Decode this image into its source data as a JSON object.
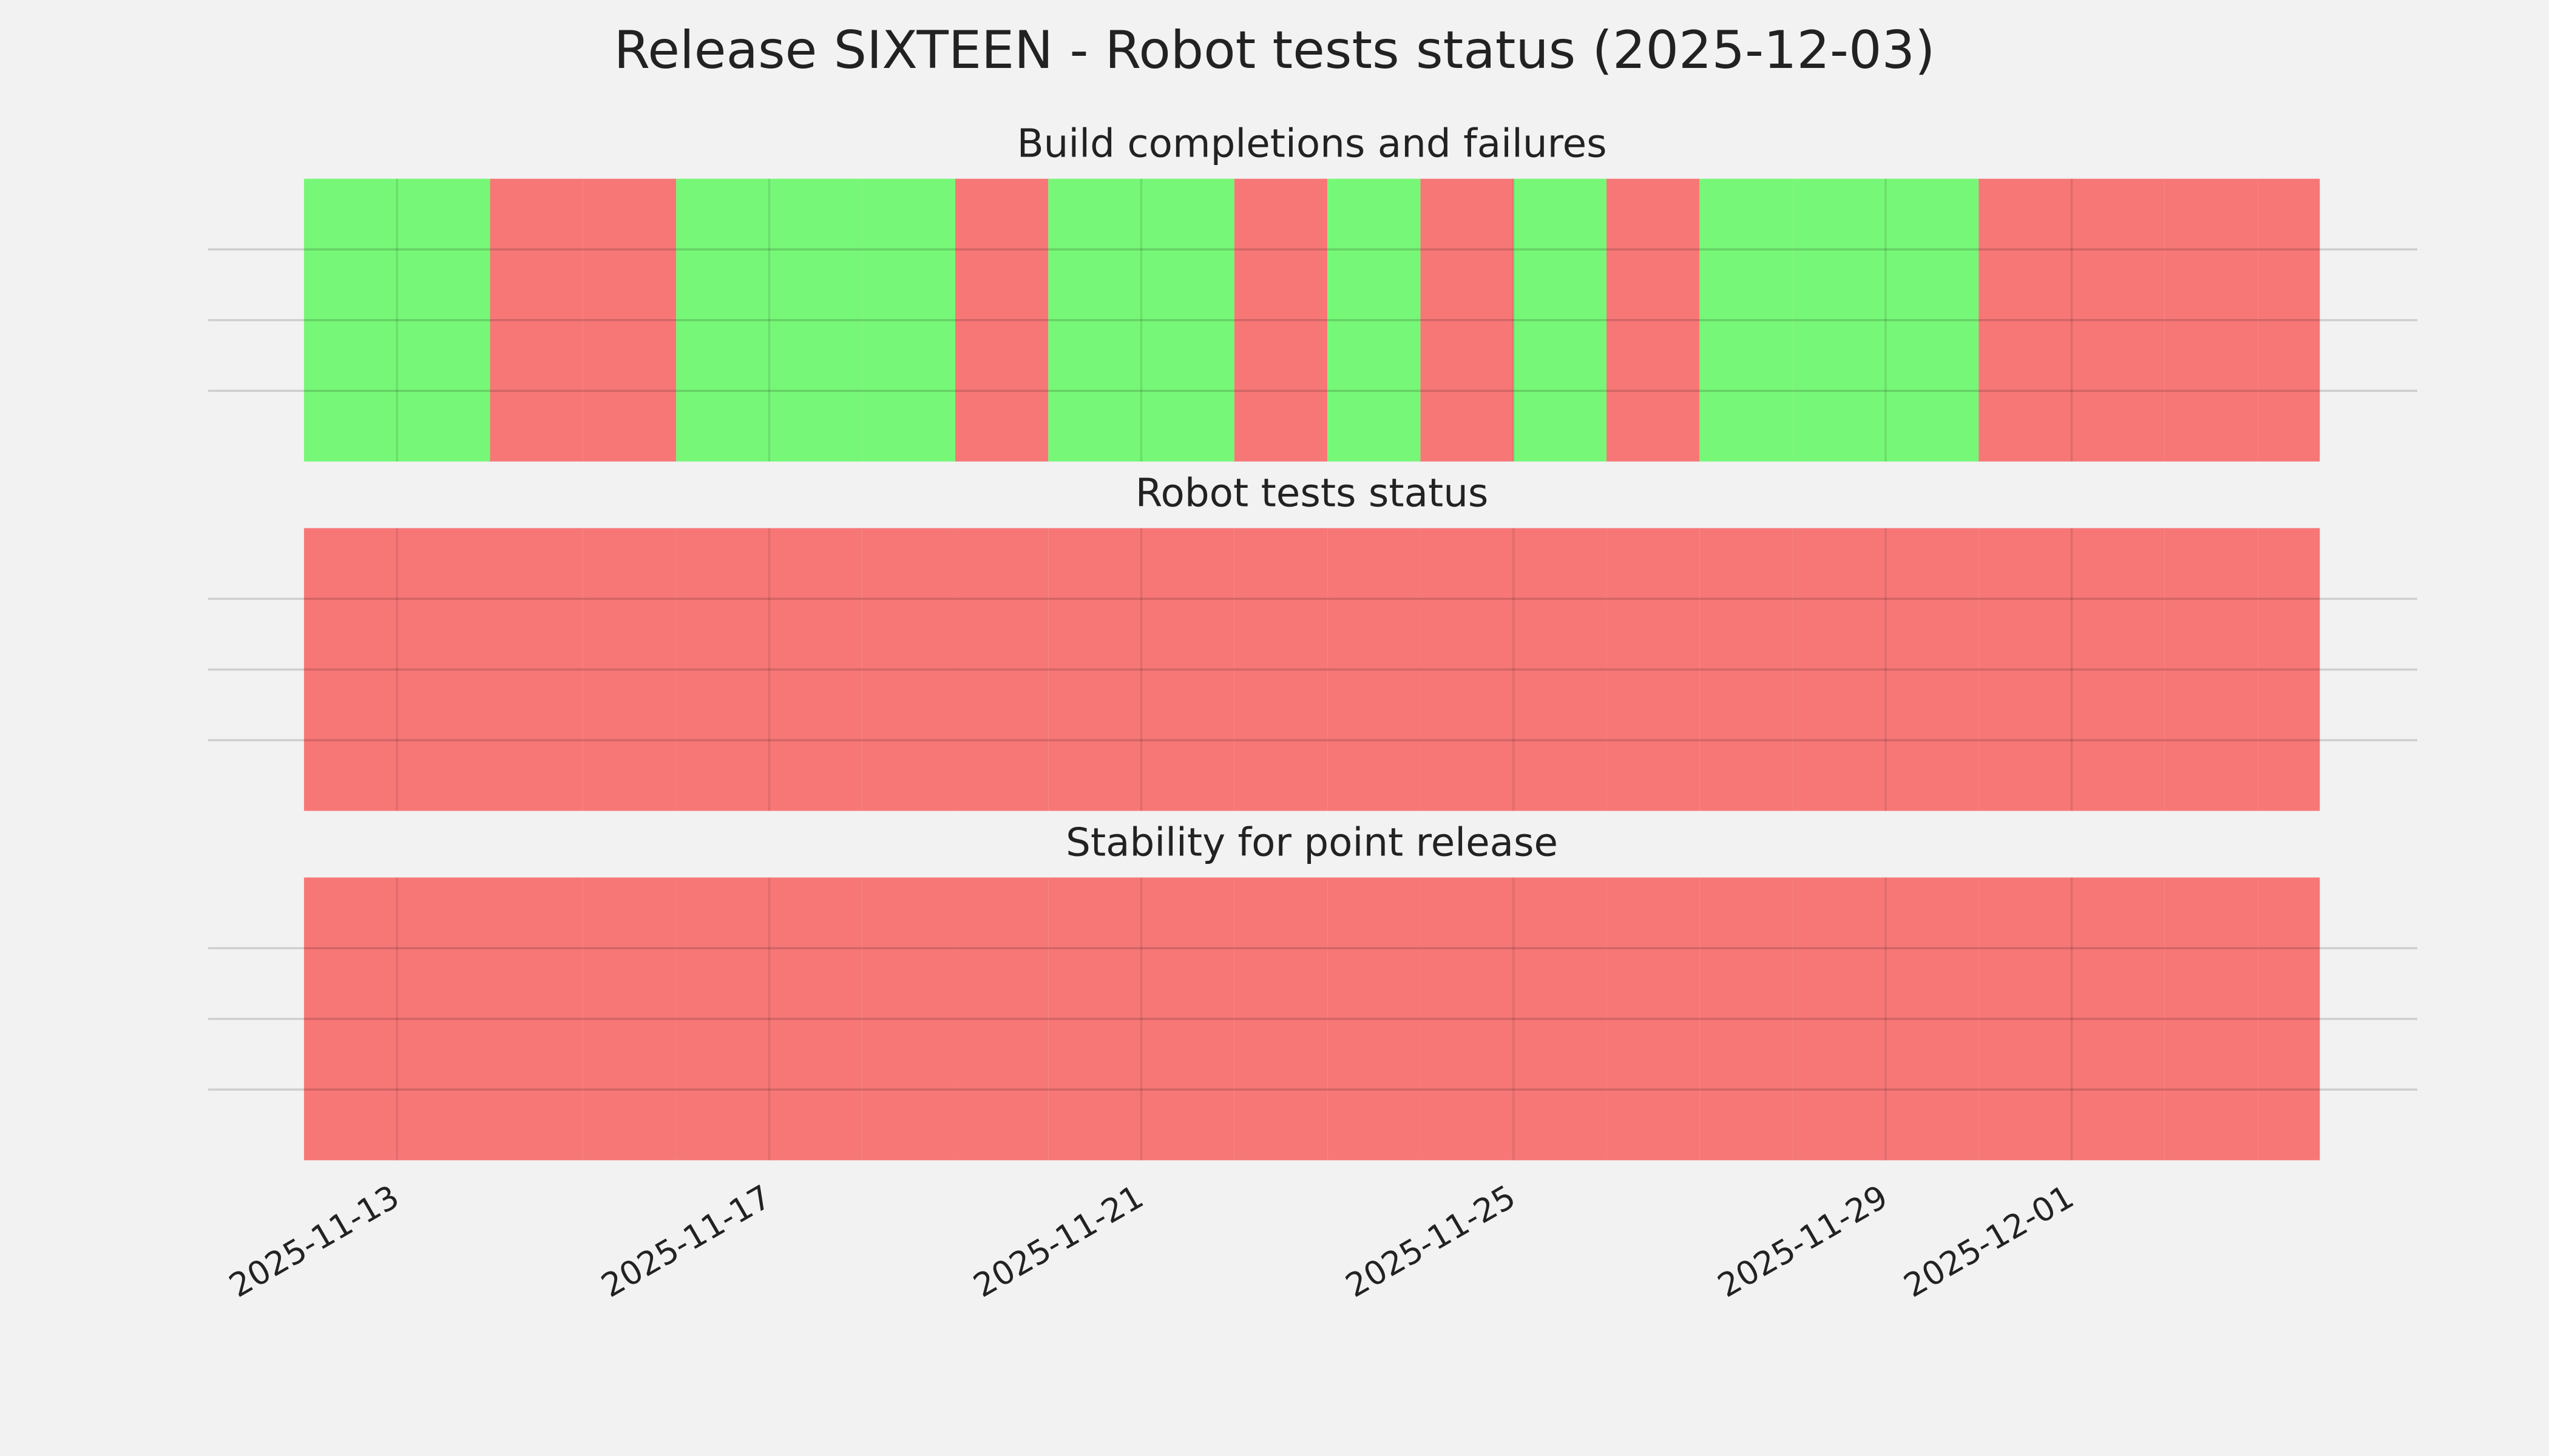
{
  "chart_data": [
    {
      "type": "timeline",
      "title": "Build completions and failures",
      "x": [
        "2025-11-12",
        "2025-11-13",
        "2025-11-14",
        "2025-11-15",
        "2025-11-16",
        "2025-11-17",
        "2025-11-18",
        "2025-11-19",
        "2025-11-20",
        "2025-11-21",
        "2025-11-22",
        "2025-11-23",
        "2025-11-24",
        "2025-11-25",
        "2025-11-26",
        "2025-11-27",
        "2025-11-28",
        "2025-11-29",
        "2025-11-30",
        "2025-12-01",
        "2025-12-02",
        "2025-12-03"
      ],
      "values": [
        1,
        1,
        0,
        0,
        1,
        1,
        1,
        0,
        1,
        1,
        0,
        1,
        0,
        1,
        0,
        1,
        1,
        1,
        0,
        0,
        0,
        0
      ],
      "pass_color": "#77f777",
      "fail_color": "#f77777",
      "xlim": [
        "2025-11-12",
        "2025-12-03T16:00"
      ],
      "xticks": [
        "2025-11-13",
        "2025-11-17",
        "2025-11-21",
        "2025-11-25",
        "2025-11-29",
        "2025-12-01"
      ],
      "ylim": [
        0,
        1
      ],
      "yticks": [
        0.25,
        0.5,
        0.75
      ],
      "grid": true
    },
    {
      "type": "timeline",
      "title": "Robot tests status",
      "x": [
        "2025-11-12",
        "2025-11-13",
        "2025-11-14",
        "2025-11-15",
        "2025-11-16",
        "2025-11-17",
        "2025-11-18",
        "2025-11-19",
        "2025-11-20",
        "2025-11-21",
        "2025-11-22",
        "2025-11-23",
        "2025-11-24",
        "2025-11-25",
        "2025-11-26",
        "2025-11-27",
        "2025-11-28",
        "2025-11-29",
        "2025-11-30",
        "2025-12-01",
        "2025-12-02",
        "2025-12-03"
      ],
      "values": [
        0,
        0,
        0,
        0,
        0,
        0,
        0,
        0,
        0,
        0,
        0,
        0,
        0,
        0,
        0,
        0,
        0,
        0,
        0,
        0,
        0,
        0
      ],
      "pass_color": "#77f777",
      "fail_color": "#f77777",
      "xlim": [
        "2025-11-12",
        "2025-12-03T16:00"
      ],
      "xticks": [
        "2025-11-13",
        "2025-11-17",
        "2025-11-21",
        "2025-11-25",
        "2025-11-29",
        "2025-12-01"
      ],
      "ylim": [
        0,
        1
      ],
      "yticks": [
        0.25,
        0.5,
        0.75
      ],
      "grid": true
    },
    {
      "type": "timeline",
      "title": "Stability for point release",
      "x": [
        "2025-11-12",
        "2025-11-13",
        "2025-11-14",
        "2025-11-15",
        "2025-11-16",
        "2025-11-17",
        "2025-11-18",
        "2025-11-19",
        "2025-11-20",
        "2025-11-21",
        "2025-11-22",
        "2025-11-23",
        "2025-11-24",
        "2025-11-25",
        "2025-11-26",
        "2025-11-27",
        "2025-11-28",
        "2025-11-29",
        "2025-11-30",
        "2025-12-01",
        "2025-12-02",
        "2025-12-03"
      ],
      "values": [
        0,
        0,
        0,
        0,
        0,
        0,
        0,
        0,
        0,
        0,
        0,
        0,
        0,
        0,
        0,
        0,
        0,
        0,
        0,
        0,
        0,
        0
      ],
      "pass_color": "#77f777",
      "fail_color": "#f77777",
      "xlim": [
        "2025-11-12",
        "2025-12-03T16:00"
      ],
      "xticks": [
        "2025-11-13",
        "2025-11-17",
        "2025-11-21",
        "2025-11-25",
        "2025-11-29",
        "2025-12-01"
      ],
      "ylim": [
        0,
        1
      ],
      "yticks": [
        0.25,
        0.5,
        0.75
      ],
      "grid": true
    }
  ],
  "title": "Release SIXTEEN - Robot tests status (2025-12-03)"
}
